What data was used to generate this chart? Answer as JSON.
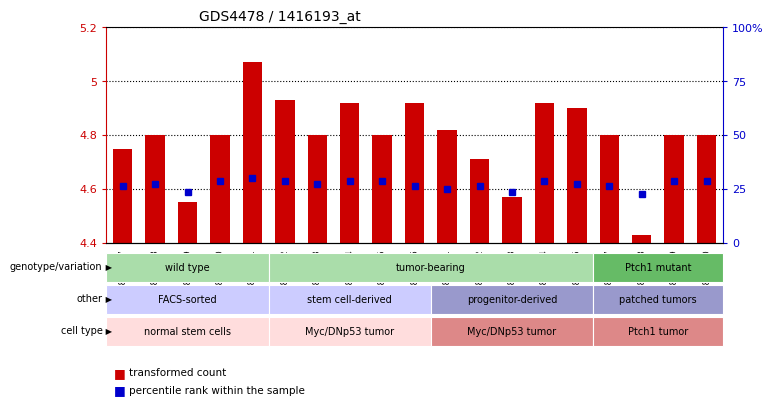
{
  "title": "GDS4478 / 1416193_at",
  "samples": [
    "GSM842157",
    "GSM842158",
    "GSM842159",
    "GSM842160",
    "GSM842161",
    "GSM842162",
    "GSM842163",
    "GSM842164",
    "GSM842165",
    "GSM842166",
    "GSM842171",
    "GSM842172",
    "GSM842173",
    "GSM842174",
    "GSM842175",
    "GSM842167",
    "GSM842168",
    "GSM842169",
    "GSM842170"
  ],
  "bar_values": [
    4.75,
    4.8,
    4.55,
    4.8,
    5.07,
    4.93,
    4.8,
    4.92,
    4.8,
    4.92,
    4.82,
    4.71,
    4.57,
    4.92,
    4.9,
    4.8,
    4.43,
    4.8,
    4.8
  ],
  "percentile_values": [
    4.61,
    4.62,
    4.59,
    4.63,
    4.64,
    4.63,
    4.62,
    4.63,
    4.63,
    4.61,
    4.6,
    4.61,
    4.59,
    4.63,
    4.62,
    4.61,
    4.58,
    4.63,
    4.63
  ],
  "ylim_left": [
    4.4,
    5.2
  ],
  "ylim_right": [
    0,
    100
  ],
  "yticks_left": [
    4.4,
    4.6,
    4.8,
    5.0,
    5.2
  ],
  "ytick_labels_left": [
    "4.4",
    "4.6",
    "4.8",
    "5",
    "5.2"
  ],
  "yticks_right": [
    0,
    25,
    50,
    75,
    100
  ],
  "ytick_labels_right": [
    "0",
    "25",
    "50",
    "75",
    "100%"
  ],
  "bar_color": "#cc0000",
  "percentile_color": "#0000cc",
  "background_color": "#ffffff",
  "annotation_rows": [
    {
      "label": "genotype/variation",
      "groups": [
        {
          "text": "wild type",
          "span": [
            0,
            4
          ],
          "color": "#aaddaa"
        },
        {
          "text": "tumor-bearing",
          "span": [
            5,
            14
          ],
          "color": "#aaddaa"
        },
        {
          "text": "Ptch1 mutant",
          "span": [
            15,
            18
          ],
          "color": "#66bb66"
        }
      ]
    },
    {
      "label": "other",
      "groups": [
        {
          "text": "FACS-sorted",
          "span": [
            0,
            4
          ],
          "color": "#ccccff"
        },
        {
          "text": "stem cell-derived",
          "span": [
            5,
            9
          ],
          "color": "#ccccff"
        },
        {
          "text": "progenitor-derived",
          "span": [
            10,
            14
          ],
          "color": "#9999cc"
        },
        {
          "text": "patched tumors",
          "span": [
            15,
            18
          ],
          "color": "#9999cc"
        }
      ]
    },
    {
      "label": "cell type",
      "groups": [
        {
          "text": "normal stem cells",
          "span": [
            0,
            4
          ],
          "color": "#ffdddd"
        },
        {
          "text": "Myc/DNp53 tumor",
          "span": [
            5,
            9
          ],
          "color": "#ffdddd"
        },
        {
          "text": "Myc/DNp53 tumor",
          "span": [
            10,
            14
          ],
          "color": "#dd8888"
        },
        {
          "text": "Ptch1 tumor",
          "span": [
            15,
            18
          ],
          "color": "#dd8888"
        }
      ]
    }
  ],
  "legend": [
    {
      "label": "transformed count",
      "color": "#cc0000"
    },
    {
      "label": "percentile rank within the sample",
      "color": "#0000cc"
    }
  ]
}
